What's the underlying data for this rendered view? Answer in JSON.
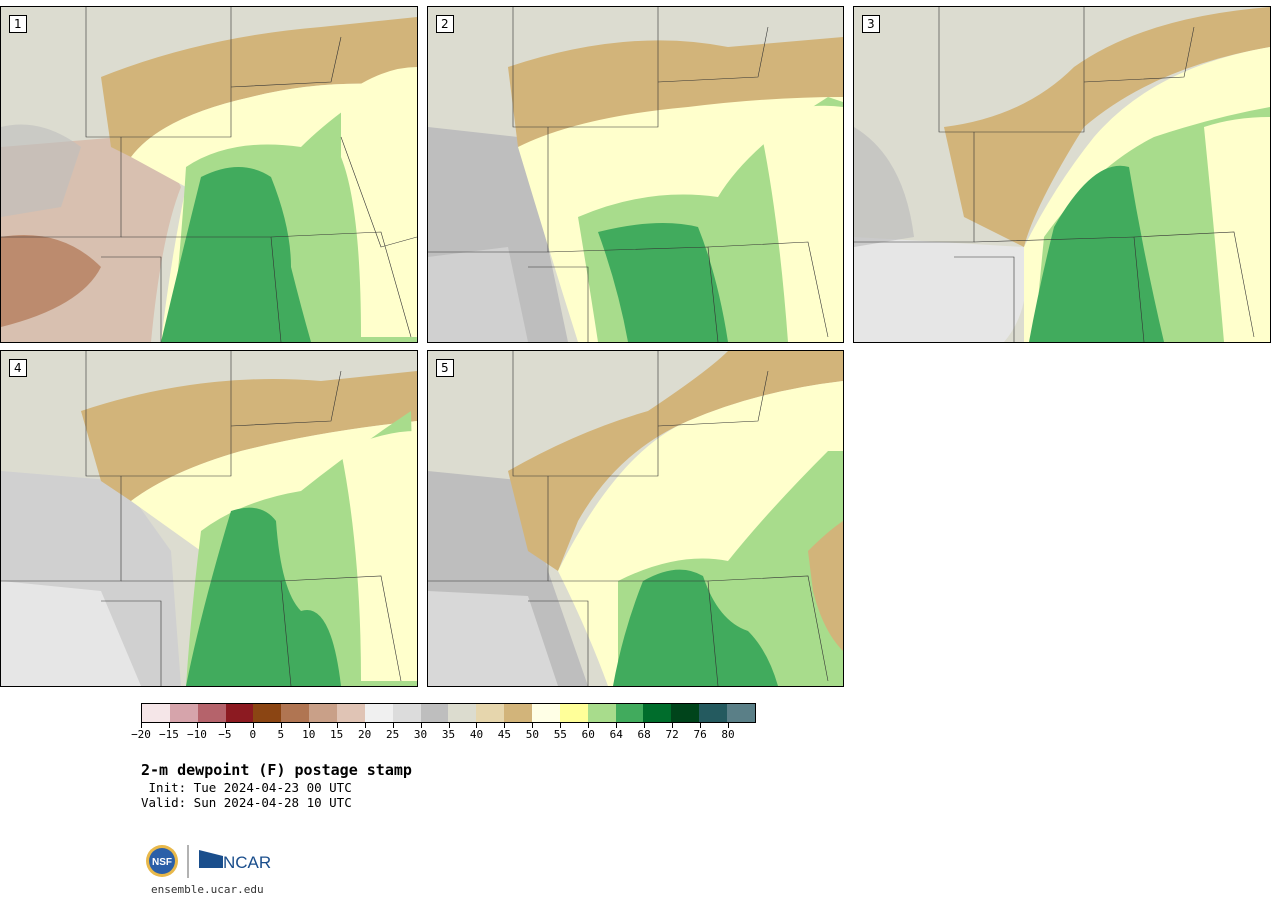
{
  "panels": [
    {
      "label": "1"
    },
    {
      "label": "2"
    },
    {
      "label": "3"
    },
    {
      "label": "4"
    },
    {
      "label": "5"
    }
  ],
  "colorbar": {
    "colors": [
      "#f5e6e8",
      "#d6a4ab",
      "#b5636b",
      "#8c1a21",
      "#8b4513",
      "#b07552",
      "#c9a088",
      "#e0c4b5",
      "#f0f0f0",
      "#dcdcdc",
      "#bebebe",
      "#dcdccf",
      "#e6d6ad",
      "#d2b47a",
      "#ffffe6",
      "#ffff99",
      "#a8dc8c",
      "#41ab5d",
      "#006d2c",
      "#00441b",
      "#245a5f",
      "#5a7f87"
    ],
    "tick_labels": [
      "−20",
      "−15",
      "−10",
      "−5",
      "0",
      "5",
      "10",
      "15",
      "20",
      "25",
      "30",
      "35",
      "40",
      "45",
      "50",
      "55",
      "60",
      "64",
      "68",
      "72",
      "76",
      "80"
    ]
  },
  "title": "2-m dewpoint (F) postage stamp",
  "init": " Init: Tue 2024-04-23 00 UTC",
  "valid": "Valid: Sun 2024-04-28 10 UTC",
  "logos": {
    "nsf": "NSF",
    "ncar": "NCAR"
  },
  "url": "ensemble.ucar.edu"
}
